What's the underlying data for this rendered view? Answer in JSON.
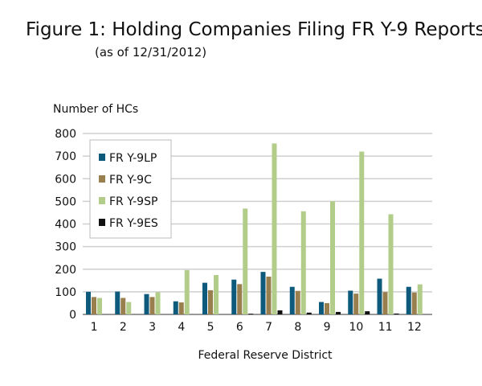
{
  "chart_data": {
    "type": "bar",
    "title": "Figure 1: Holding Companies Filing FR Y-9 Reports",
    "subtitle": "(as of 12/31/2012)",
    "ylabel": "Number of HCs",
    "xlabel": "Federal Reserve District",
    "ylim": [
      0,
      800
    ],
    "yticks": [
      0,
      100,
      200,
      300,
      400,
      500,
      600,
      700,
      800
    ],
    "grid": true,
    "legend_placement": "top-left",
    "categories": [
      "1",
      "2",
      "3",
      "4",
      "5",
      "6",
      "7",
      "8",
      "9",
      "10",
      "11",
      "12"
    ],
    "series": [
      {
        "name": "FR Y-9LP",
        "color": "#0d5a7c",
        "values": [
          100,
          101,
          90,
          58,
          140,
          154,
          188,
          122,
          55,
          105,
          158,
          122
        ]
      },
      {
        "name": "FR Y-9C",
        "color": "#9a7f4e",
        "values": [
          77,
          73,
          77,
          53,
          107,
          134,
          167,
          104,
          50,
          92,
          99,
          97
        ]
      },
      {
        "name": "FR Y-9SP",
        "color": "#b2cc8a",
        "values": [
          73,
          55,
          98,
          196,
          174,
          468,
          756,
          456,
          500,
          720,
          443,
          133
        ]
      },
      {
        "name": "FR Y-9ES",
        "color": "#111111",
        "values": [
          0,
          0,
          0,
          0,
          0,
          3,
          18,
          8,
          11,
          14,
          4,
          0
        ]
      }
    ]
  }
}
